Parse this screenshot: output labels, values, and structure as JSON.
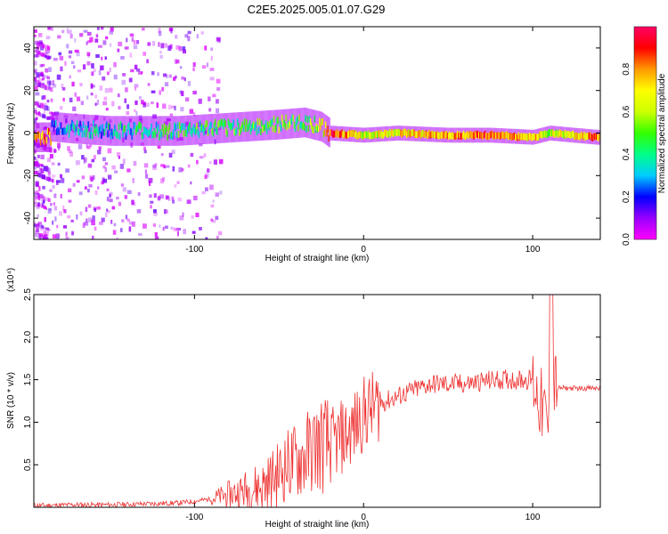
{
  "figure": {
    "title": "C2E5.2025.005.01.07.G29"
  },
  "chart_data": [
    {
      "type": "heatmap",
      "xlabel": "Height of straight line (km)",
      "ylabel": "Frequency (Hz)",
      "xlim": [
        -195,
        140
      ],
      "ylim": [
        -50,
        50
      ],
      "x_ticks": [
        "-100",
        "0",
        "100"
      ],
      "y_ticks": [
        "-40",
        "-20",
        "0",
        "20",
        "40"
      ],
      "grid": false,
      "colorbar": {
        "label": "Normalized spectral amplitude",
        "range": [
          0,
          1
        ],
        "ticks": [
          "0.0",
          "0.2",
          "0.4",
          "0.6",
          "0.8"
        ],
        "colormap": [
          "#ff00ff",
          "#9900ff",
          "#0000ff",
          "#00ccff",
          "#00ff88",
          "#33ff00",
          "#ccff00",
          "#ffff00",
          "#ff9900",
          "#ff0000",
          "#ff0066"
        ]
      },
      "ridge": [
        {
          "x": -185,
          "freq": 3,
          "amp": 0.25
        },
        {
          "x": -170,
          "freq": 2,
          "amp": 0.3
        },
        {
          "x": -150,
          "freq": 1,
          "amp": 0.35
        },
        {
          "x": -130,
          "freq": 1,
          "amp": 0.38
        },
        {
          "x": -110,
          "freq": 1,
          "amp": 0.42
        },
        {
          "x": -90,
          "freq": 2,
          "amp": 0.45
        },
        {
          "x": -70,
          "freq": 3,
          "amp": 0.48
        },
        {
          "x": -50,
          "freq": 4,
          "amp": 0.5
        },
        {
          "x": -35,
          "freq": 5,
          "amp": 0.5
        },
        {
          "x": -25,
          "freq": 3,
          "amp": 0.6
        },
        {
          "x": -20,
          "freq": 0,
          "amp": 0.9
        },
        {
          "x": 0,
          "freq": -1,
          "amp": 0.6
        },
        {
          "x": 20,
          "freq": 0,
          "amp": 0.7
        },
        {
          "x": 50,
          "freq": -1,
          "amp": 0.75
        },
        {
          "x": 75,
          "freq": -1,
          "amp": 0.85
        },
        {
          "x": 100,
          "freq": -2,
          "amp": 0.7
        },
        {
          "x": 110,
          "freq": 0,
          "amp": 0.6
        },
        {
          "x": 138,
          "freq": -2,
          "amp": 0.8
        }
      ]
    },
    {
      "type": "line",
      "xlabel": "Height of straight line (km)",
      "ylabel": "SNR (10 * v/v)",
      "y_multiplier": "(x10⁴)",
      "xlim": [
        -195,
        140
      ],
      "ylim": [
        0,
        2.5
      ],
      "x_ticks": [
        "-100",
        "0",
        "100"
      ],
      "y_ticks": [
        "0.5",
        "1.0",
        "1.5",
        "2.0",
        "2.5"
      ],
      "grid": false,
      "series": [
        {
          "color": "#ee3333",
          "x": [
            -195,
            -170,
            -150,
            -130,
            -110,
            -100,
            -90,
            -80,
            -70,
            -60,
            -55,
            -50,
            -45,
            -40,
            -35,
            -30,
            -25,
            -20,
            -15,
            -10,
            -5,
            0,
            10,
            20,
            30,
            40,
            50,
            60,
            70,
            80,
            90,
            100,
            105,
            110,
            112,
            115,
            120,
            130,
            140
          ],
          "y": [
            0.02,
            0.03,
            0.03,
            0.04,
            0.05,
            0.07,
            0.1,
            0.15,
            0.2,
            0.25,
            0.32,
            0.4,
            0.5,
            0.55,
            0.6,
            0.7,
            0.75,
            0.7,
            0.8,
            0.85,
            0.95,
            1.1,
            1.22,
            1.3,
            1.38,
            1.45,
            1.45,
            1.45,
            1.48,
            1.5,
            1.5,
            1.5,
            1.2,
            0.9,
            1.5,
            1.4,
            1.4,
            1.4,
            1.4
          ]
        }
      ]
    }
  ]
}
